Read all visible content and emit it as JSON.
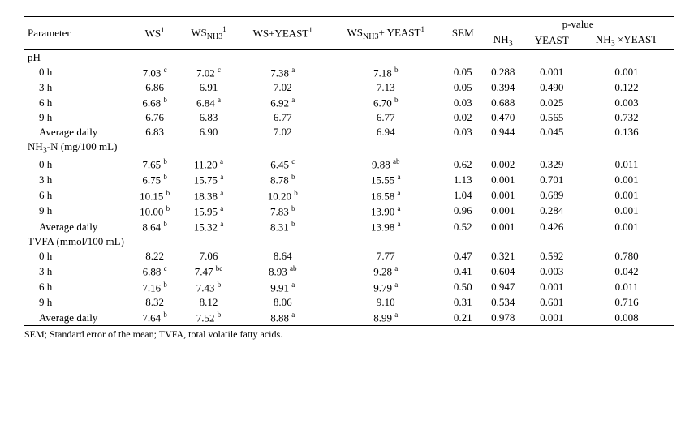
{
  "header": {
    "parameter": "Parameter",
    "ws": "WS",
    "wsnh3": "WS",
    "wsyeast": "WS+YEAST",
    "wsnh3yeast": "WS",
    "sem": "SEM",
    "pvalue": "p-value",
    "nh3": "NH",
    "yeast": "YEAST",
    "nh3xyeast": "NH",
    "sup1": "1",
    "subNH3": "NH3",
    "sub3": "3",
    "plusYeast": "+ YEAST",
    "xYeast": " ×YEAST"
  },
  "sections": [
    {
      "title": "pH",
      "rows": [
        {
          "label": "0 h",
          "ws": "7.03",
          "ws_s": "c",
          "wsnh3": "7.02",
          "wsnh3_s": "c",
          "wsy": "7.38",
          "wsy_s": "a",
          "wsnh3y": "7.18",
          "wsnh3y_s": "b",
          "sem": "0.05",
          "p1": "0.288",
          "p2": "0.001",
          "p3": "0.001"
        },
        {
          "label": "3 h",
          "ws": "6.86",
          "ws_s": "",
          "wsnh3": "6.91",
          "wsnh3_s": "",
          "wsy": "7.02",
          "wsy_s": "",
          "wsnh3y": "7.13",
          "wsnh3y_s": "",
          "sem": "0.05",
          "p1": "0.394",
          "p2": "0.490",
          "p3": "0.122"
        },
        {
          "label": "6 h",
          "ws": "6.68",
          "ws_s": "b",
          "wsnh3": "6.84",
          "wsnh3_s": "a",
          "wsy": "6.92",
          "wsy_s": "a",
          "wsnh3y": "6.70",
          "wsnh3y_s": "b",
          "sem": "0.03",
          "p1": "0.688",
          "p2": "0.025",
          "p3": "0.003"
        },
        {
          "label": "9 h",
          "ws": "6.76",
          "ws_s": "",
          "wsnh3": "6.83",
          "wsnh3_s": "",
          "wsy": "6.77",
          "wsy_s": "",
          "wsnh3y": "6.77",
          "wsnh3y_s": "",
          "sem": "0.02",
          "p1": "0.470",
          "p2": "0.565",
          "p3": "0.732"
        },
        {
          "label": "Average daily",
          "ws": "6.83",
          "ws_s": "",
          "wsnh3": "6.90",
          "wsnh3_s": "",
          "wsy": "7.02",
          "wsy_s": "",
          "wsnh3y": "6.94",
          "wsnh3y_s": "",
          "sem": "0.03",
          "p1": "0.944",
          "p2": "0.045",
          "p3": "0.136"
        }
      ]
    },
    {
      "title": "NH₃-N (mg/100 mL)",
      "rows": [
        {
          "label": "0 h",
          "ws": "7.65",
          "ws_s": "b",
          "wsnh3": "11.20",
          "wsnh3_s": "a",
          "wsy": "6.45",
          "wsy_s": "c",
          "wsnh3y": "9.88",
          "wsnh3y_s": "ab",
          "sem": "0.62",
          "p1": "0.002",
          "p2": "0.329",
          "p3": "0.011"
        },
        {
          "label": "3 h",
          "ws": "6.75",
          "ws_s": "b",
          "wsnh3": "15.75",
          "wsnh3_s": "a",
          "wsy": "8.78",
          "wsy_s": "b",
          "wsnh3y": "15.55",
          "wsnh3y_s": "a",
          "sem": "1.13",
          "p1": "0.001",
          "p2": "0.701",
          "p3": "0.001"
        },
        {
          "label": "6 h",
          "ws": "10.15",
          "ws_s": "b",
          "wsnh3": "18.38",
          "wsnh3_s": "a",
          "wsy": "10.20",
          "wsy_s": "b",
          "wsnh3y": "16.58",
          "wsnh3y_s": "a",
          "sem": "1.04",
          "p1": "0.001",
          "p2": "0.689",
          "p3": "0.001"
        },
        {
          "label": "9 h",
          "ws": "10.00",
          "ws_s": "b",
          "wsnh3": "15.95",
          "wsnh3_s": "a",
          "wsy": "7.83",
          "wsy_s": "b",
          "wsnh3y": "13.90",
          "wsnh3y_s": "a",
          "sem": "0.96",
          "p1": "0.001",
          "p2": "0.284",
          "p3": "0.001"
        },
        {
          "label": "Average daily",
          "ws": "8.64",
          "ws_s": "b",
          "wsnh3": "15.32",
          "wsnh3_s": "a",
          "wsy": "8.31",
          "wsy_s": "b",
          "wsnh3y": "13.98",
          "wsnh3y_s": "a",
          "sem": "0.52",
          "p1": "0.001",
          "p2": "0.426",
          "p3": "0.001"
        }
      ]
    },
    {
      "title": "TVFA (mmol/100 mL)",
      "rows": [
        {
          "label": "0 h",
          "ws": "8.22",
          "ws_s": "",
          "wsnh3": "7.06",
          "wsnh3_s": "",
          "wsy": "8.64",
          "wsy_s": "",
          "wsnh3y": "7.77",
          "wsnh3y_s": "",
          "sem": "0.47",
          "p1": "0.321",
          "p2": "0.592",
          "p3": "0.780"
        },
        {
          "label": "3 h",
          "ws": "6.88",
          "ws_s": "c",
          "wsnh3": "7.47",
          "wsnh3_s": "bc",
          "wsy": "8.93",
          "wsy_s": "ab",
          "wsnh3y": "9.28",
          "wsnh3y_s": "a",
          "sem": "0.41",
          "p1": "0.604",
          "p2": "0.003",
          "p3": "0.042"
        },
        {
          "label": "6 h",
          "ws": "7.16",
          "ws_s": "b",
          "wsnh3": "7.43",
          "wsnh3_s": "b",
          "wsy": "9.91",
          "wsy_s": "a",
          "wsnh3y": "9.79",
          "wsnh3y_s": "a",
          "sem": "0.50",
          "p1": "0.947",
          "p2": "0.001",
          "p3": "0.011"
        },
        {
          "label": "9 h",
          "ws": "8.32",
          "ws_s": "",
          "wsnh3": "8.12",
          "wsnh3_s": "",
          "wsy": "8.06",
          "wsy_s": "",
          "wsnh3y": "9.10",
          "wsnh3y_s": "",
          "sem": "0.31",
          "p1": "0.534",
          "p2": "0.601",
          "p3": "0.716"
        },
        {
          "label": "Average daily",
          "ws": "7.64",
          "ws_s": "b",
          "wsnh3": "7.52",
          "wsnh3_s": "b",
          "wsy": "8.88",
          "wsy_s": "a",
          "wsnh3y": "8.99",
          "wsnh3y_s": "a",
          "sem": "0.21",
          "p1": "0.978",
          "p2": "0.001",
          "p3": "0.008"
        }
      ]
    }
  ],
  "footnote": "SEM; Standard error of the mean; TVFA, total volatile fatty acids."
}
